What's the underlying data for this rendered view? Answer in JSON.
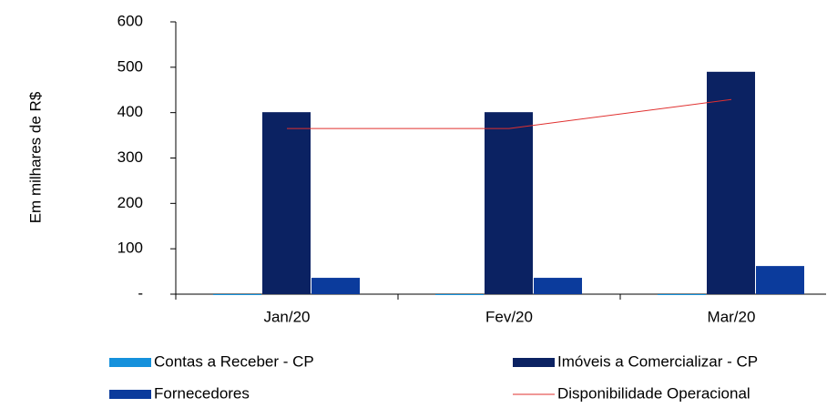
{
  "chart_data": {
    "type": "bar",
    "y_label": "Em milhares de R$",
    "categories": [
      "Jan/20",
      "Fev/20",
      "Mar/20"
    ],
    "series": [
      {
        "name": "Contas a Receber  - CP",
        "color": "#1591dc",
        "values": [
          0,
          0,
          0
        ]
      },
      {
        "name": "Imóveis a Comercializar - CP",
        "color": "#0b2262",
        "values": [
          401,
          401,
          490
        ]
      },
      {
        "name": "Fornecedores",
        "color": "#0b3b9c",
        "values": [
          36,
          36,
          62
        ]
      },
      {
        "name": "Disponibilidade Operacional",
        "color": "#e0302f",
        "type": "line",
        "values": [
          365,
          365,
          429
        ]
      }
    ],
    "ylim": [
      0,
      600
    ],
    "yticks": [
      {
        "value": 0,
        "label": "-"
      },
      100,
      200,
      300,
      400,
      500,
      600
    ]
  }
}
